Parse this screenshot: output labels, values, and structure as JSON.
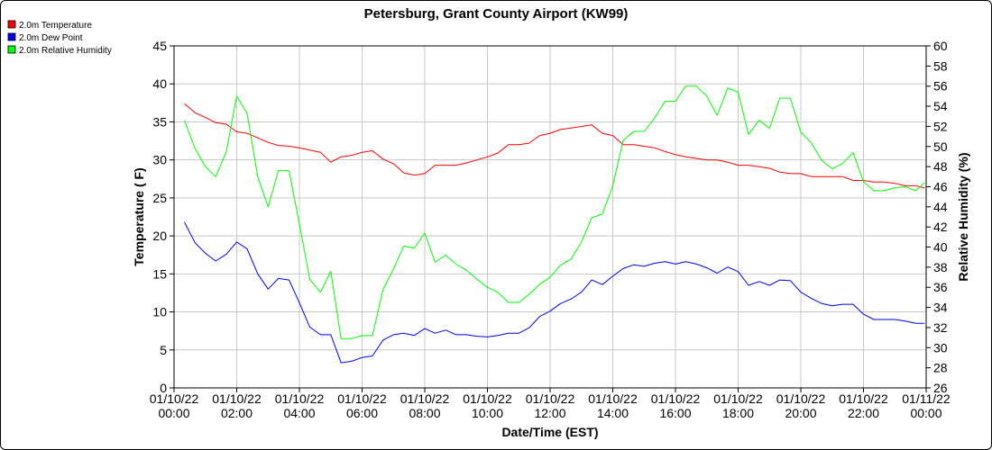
{
  "chart_data": {
    "type": "line",
    "title": "Petersburg, Grant County Airport (KW99)",
    "xlabel": "Date/Time (EST)",
    "ylabel_left": "Temperature ( F)",
    "ylabel_right": "Relative Humidity (%)",
    "x_ticks": [
      {
        "h": 0,
        "date": "01/10/22",
        "time": "00:00"
      },
      {
        "h": 2,
        "date": "01/10/22",
        "time": "02:00"
      },
      {
        "h": 4,
        "date": "01/10/22",
        "time": "04:00"
      },
      {
        "h": 6,
        "date": "01/10/22",
        "time": "06:00"
      },
      {
        "h": 8,
        "date": "01/10/22",
        "time": "08:00"
      },
      {
        "h": 10,
        "date": "01/10/22",
        "time": "10:00"
      },
      {
        "h": 12,
        "date": "01/10/22",
        "time": "12:00"
      },
      {
        "h": 14,
        "date": "01/10/22",
        "time": "14:00"
      },
      {
        "h": 16,
        "date": "01/10/22",
        "time": "16:00"
      },
      {
        "h": 18,
        "date": "01/10/22",
        "time": "18:00"
      },
      {
        "h": 20,
        "date": "01/10/22",
        "time": "20:00"
      },
      {
        "h": 22,
        "date": "01/10/22",
        "time": "22:00"
      },
      {
        "h": 24,
        "date": "01/11/22",
        "time": "00:00"
      }
    ],
    "xlim": [
      0,
      24
    ],
    "ylim_left": [
      0,
      45
    ],
    "yticks_left": [
      "0",
      "5",
      "10",
      "15",
      "20",
      "25",
      "30",
      "35",
      "40",
      "45"
    ],
    "ylim_right": [
      26,
      60
    ],
    "yticks_right": [
      "26",
      "28",
      "30",
      "32",
      "34",
      "36",
      "38",
      "40",
      "42",
      "44",
      "46",
      "48",
      "50",
      "52",
      "54",
      "56",
      "58",
      "60"
    ],
    "grid": true,
    "legend_position": "top-left",
    "series": [
      {
        "name": "2.0m Temperature",
        "color": "#ff0000",
        "axis": "left",
        "points": [
          [
            0.33,
            37.4
          ],
          [
            0.67,
            36.2
          ],
          [
            1.0,
            35.6
          ],
          [
            1.33,
            34.9
          ],
          [
            1.67,
            34.7
          ],
          [
            2.0,
            33.7
          ],
          [
            2.33,
            33.5
          ],
          [
            2.67,
            32.9
          ],
          [
            3.0,
            32.3
          ],
          [
            3.33,
            31.9
          ],
          [
            3.67,
            31.8
          ],
          [
            4.0,
            31.6
          ],
          [
            4.33,
            31.3
          ],
          [
            4.67,
            31.0
          ],
          [
            5.0,
            29.7
          ],
          [
            5.33,
            30.4
          ],
          [
            5.67,
            30.6
          ],
          [
            6.0,
            31.0
          ],
          [
            6.33,
            31.2
          ],
          [
            6.67,
            30.1
          ],
          [
            7.0,
            29.5
          ],
          [
            7.33,
            28.3
          ],
          [
            7.67,
            28.0
          ],
          [
            8.0,
            28.2
          ],
          [
            8.33,
            29.3
          ],
          [
            8.67,
            29.3
          ],
          [
            9.0,
            29.3
          ],
          [
            9.33,
            29.6
          ],
          [
            9.67,
            30.0
          ],
          [
            10.0,
            30.4
          ],
          [
            10.33,
            30.9
          ],
          [
            10.67,
            32.0
          ],
          [
            11.0,
            32.0
          ],
          [
            11.33,
            32.2
          ],
          [
            11.67,
            33.2
          ],
          [
            12.0,
            33.5
          ],
          [
            12.33,
            34.0
          ],
          [
            12.67,
            34.2
          ],
          [
            13.0,
            34.4
          ],
          [
            13.33,
            34.6
          ],
          [
            13.67,
            33.5
          ],
          [
            14.0,
            33.2
          ],
          [
            14.33,
            32.0
          ],
          [
            14.67,
            32.0
          ],
          [
            15.0,
            31.8
          ],
          [
            15.33,
            31.6
          ],
          [
            15.67,
            31.1
          ],
          [
            16.0,
            30.7
          ],
          [
            16.33,
            30.4
          ],
          [
            16.67,
            30.2
          ],
          [
            17.0,
            30.0
          ],
          [
            17.33,
            30.0
          ],
          [
            17.67,
            29.7
          ],
          [
            18.0,
            29.3
          ],
          [
            18.33,
            29.3
          ],
          [
            18.67,
            29.1
          ],
          [
            19.0,
            28.9
          ],
          [
            19.33,
            28.4
          ],
          [
            19.67,
            28.2
          ],
          [
            20.0,
            28.2
          ],
          [
            20.33,
            27.8
          ],
          [
            20.67,
            27.8
          ],
          [
            21.0,
            27.8
          ],
          [
            21.33,
            27.8
          ],
          [
            21.67,
            27.3
          ],
          [
            22.0,
            27.3
          ],
          [
            22.33,
            27.1
          ],
          [
            22.67,
            27.1
          ],
          [
            23.0,
            26.9
          ],
          [
            23.33,
            26.6
          ],
          [
            23.67,
            26.6
          ],
          [
            23.95,
            26.3
          ]
        ]
      },
      {
        "name": "2.0m Dew Point",
        "color": "#0000ff",
        "axis": "left",
        "points": [
          [
            0.33,
            21.8
          ],
          [
            0.67,
            19.1
          ],
          [
            1.0,
            17.7
          ],
          [
            1.33,
            16.7
          ],
          [
            1.67,
            17.6
          ],
          [
            2.0,
            19.2
          ],
          [
            2.33,
            18.3
          ],
          [
            2.67,
            15.0
          ],
          [
            3.0,
            13.0
          ],
          [
            3.33,
            14.4
          ],
          [
            3.67,
            14.2
          ],
          [
            4.0,
            11.2
          ],
          [
            4.33,
            8.0
          ],
          [
            4.67,
            7.0
          ],
          [
            5.0,
            7.0
          ],
          [
            5.33,
            3.3
          ],
          [
            5.67,
            3.5
          ],
          [
            6.0,
            4.0
          ],
          [
            6.33,
            4.2
          ],
          [
            6.67,
            6.3
          ],
          [
            7.0,
            7.0
          ],
          [
            7.33,
            7.2
          ],
          [
            7.67,
            6.9
          ],
          [
            8.0,
            7.8
          ],
          [
            8.33,
            7.2
          ],
          [
            8.67,
            7.6
          ],
          [
            9.0,
            7.0
          ],
          [
            9.33,
            7.0
          ],
          [
            9.67,
            6.8
          ],
          [
            10.0,
            6.7
          ],
          [
            10.33,
            6.9
          ],
          [
            10.67,
            7.2
          ],
          [
            11.0,
            7.2
          ],
          [
            11.33,
            7.9
          ],
          [
            11.67,
            9.4
          ],
          [
            12.0,
            10.1
          ],
          [
            12.33,
            11.1
          ],
          [
            12.67,
            11.7
          ],
          [
            13.0,
            12.6
          ],
          [
            13.33,
            14.2
          ],
          [
            13.67,
            13.6
          ],
          [
            14.0,
            14.7
          ],
          [
            14.33,
            15.7
          ],
          [
            14.67,
            16.2
          ],
          [
            15.0,
            16.0
          ],
          [
            15.33,
            16.4
          ],
          [
            15.67,
            16.6
          ],
          [
            16.0,
            16.3
          ],
          [
            16.33,
            16.6
          ],
          [
            16.67,
            16.3
          ],
          [
            17.0,
            15.8
          ],
          [
            17.33,
            15.1
          ],
          [
            17.67,
            15.9
          ],
          [
            18.0,
            15.3
          ],
          [
            18.33,
            13.5
          ],
          [
            18.67,
            14.0
          ],
          [
            19.0,
            13.5
          ],
          [
            19.33,
            14.2
          ],
          [
            19.67,
            14.1
          ],
          [
            20.0,
            12.6
          ],
          [
            20.33,
            11.8
          ],
          [
            20.67,
            11.1
          ],
          [
            21.0,
            10.8
          ],
          [
            21.33,
            11.0
          ],
          [
            21.67,
            11.0
          ],
          [
            22.0,
            9.7
          ],
          [
            22.33,
            9.0
          ],
          [
            22.67,
            9.0
          ],
          [
            23.0,
            9.0
          ],
          [
            23.33,
            8.8
          ],
          [
            23.67,
            8.5
          ],
          [
            23.95,
            8.5
          ]
        ]
      },
      {
        "name": "2.0m Relative Humidity",
        "color": "#00ff00",
        "axis": "right",
        "points": [
          [
            0.33,
            52.6
          ],
          [
            0.67,
            49.8
          ],
          [
            1.0,
            48.0
          ],
          [
            1.33,
            47.0
          ],
          [
            1.67,
            49.5
          ],
          [
            2.0,
            55.0
          ],
          [
            2.33,
            53.3
          ],
          [
            2.67,
            47.0
          ],
          [
            3.0,
            44.0
          ],
          [
            3.33,
            47.6
          ],
          [
            3.67,
            47.6
          ],
          [
            4.0,
            42.3
          ],
          [
            4.33,
            36.8
          ],
          [
            4.67,
            35.5
          ],
          [
            5.0,
            37.6
          ],
          [
            5.33,
            30.9
          ],
          [
            5.67,
            30.9
          ],
          [
            6.0,
            31.2
          ],
          [
            6.33,
            31.2
          ],
          [
            6.67,
            35.8
          ],
          [
            7.0,
            37.8
          ],
          [
            7.33,
            40.1
          ],
          [
            7.67,
            39.9
          ],
          [
            8.0,
            41.4
          ],
          [
            8.33,
            38.5
          ],
          [
            8.67,
            39.2
          ],
          [
            9.0,
            38.3
          ],
          [
            9.33,
            37.7
          ],
          [
            9.67,
            36.8
          ],
          [
            10.0,
            36.0
          ],
          [
            10.33,
            35.5
          ],
          [
            10.67,
            34.5
          ],
          [
            11.0,
            34.5
          ],
          [
            11.33,
            35.3
          ],
          [
            11.67,
            36.3
          ],
          [
            12.0,
            37.0
          ],
          [
            12.33,
            38.2
          ],
          [
            12.67,
            38.8
          ],
          [
            13.0,
            40.5
          ],
          [
            13.33,
            42.9
          ],
          [
            13.67,
            43.3
          ],
          [
            14.0,
            46.1
          ],
          [
            14.33,
            50.6
          ],
          [
            14.67,
            51.5
          ],
          [
            15.0,
            51.5
          ],
          [
            15.33,
            52.8
          ],
          [
            15.67,
            54.5
          ],
          [
            16.0,
            54.5
          ],
          [
            16.33,
            56.0
          ],
          [
            16.67,
            56.0
          ],
          [
            17.0,
            55.0
          ],
          [
            17.33,
            53.1
          ],
          [
            17.67,
            55.8
          ],
          [
            18.0,
            55.4
          ],
          [
            18.33,
            51.2
          ],
          [
            18.67,
            52.6
          ],
          [
            19.0,
            51.8
          ],
          [
            19.33,
            54.8
          ],
          [
            19.67,
            54.8
          ],
          [
            20.0,
            51.4
          ],
          [
            20.33,
            50.4
          ],
          [
            20.67,
            48.6
          ],
          [
            21.0,
            47.8
          ],
          [
            21.33,
            48.3
          ],
          [
            21.67,
            49.4
          ],
          [
            22.0,
            46.5
          ],
          [
            22.33,
            45.6
          ],
          [
            22.67,
            45.6
          ],
          [
            23.0,
            45.9
          ],
          [
            23.33,
            46.0
          ],
          [
            23.67,
            45.6
          ],
          [
            23.95,
            46.4
          ]
        ]
      }
    ]
  }
}
